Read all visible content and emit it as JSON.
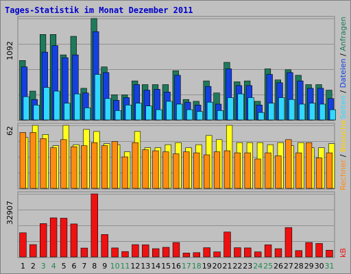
{
  "title": "Tages-Statistik im Monat Dezember 2011",
  "colors": {
    "anfragen": "#1f7a5c",
    "dateien": "#1540e0",
    "seiten": "#30d8ff",
    "besuche": "#ffff1a",
    "rechner": "#ff8c10",
    "kb": "#ee1111",
    "weekend": "#1f8a50",
    "grid": "#909090",
    "panel_bg": "#c0c0c0"
  },
  "right_axis_labels": [
    {
      "text": "Anfragen",
      "color": "#1f7a5c"
    },
    {
      "text": "Dateien",
      "color": "#1540e0"
    },
    {
      "text": "Seiten",
      "color": "#30d8ff"
    },
    {
      "text": "Besuche",
      "color": "#ffd000"
    },
    {
      "text": "Rechner",
      "color": "#ff8c10"
    },
    {
      "text": "kB",
      "color": "#ee1111"
    }
  ],
  "separator": " / ",
  "chart_data": [
    {
      "type": "bar",
      "name": "hits",
      "ymax_label": "1092",
      "ylim": [
        0,
        1092
      ],
      "categories": [
        "1",
        "2",
        "3",
        "4",
        "5",
        "6",
        "7",
        "8",
        "9",
        "10",
        "11",
        "12",
        "13",
        "14",
        "15",
        "16",
        "17",
        "18",
        "19",
        "20",
        "21",
        "22",
        "23",
        "24",
        "25",
        "26",
        "27",
        "28",
        "29",
        "30",
        "31"
      ],
      "series": [
        {
          "name": "Anfragen",
          "values": [
            640,
            310,
            920,
            920,
            700,
            900,
            340,
            1092,
            570,
            270,
            270,
            420,
            380,
            380,
            380,
            530,
            220,
            200,
            420,
            290,
            620,
            410,
            420,
            200,
            550,
            430,
            540,
            480,
            380,
            380,
            320
          ]
        },
        {
          "name": "Dateien",
          "values": [
            570,
            220,
            730,
            800,
            670,
            700,
            290,
            950,
            510,
            210,
            240,
            380,
            320,
            330,
            300,
            480,
            190,
            160,
            360,
            170,
            550,
            370,
            370,
            160,
            490,
            400,
            510,
            420,
            340,
            340,
            230
          ]
        },
        {
          "name": "Seiten",
          "values": [
            250,
            160,
            350,
            310,
            180,
            280,
            130,
            490,
            230,
            100,
            160,
            180,
            150,
            110,
            200,
            170,
            110,
            90,
            190,
            100,
            240,
            280,
            240,
            80,
            180,
            240,
            220,
            170,
            180,
            170,
            110
          ]
        }
      ]
    },
    {
      "type": "bar",
      "name": "visits",
      "ymax_label": "62",
      "ylim": [
        0,
        62
      ],
      "categories": [
        "1",
        "2",
        "3",
        "4",
        "5",
        "6",
        "7",
        "8",
        "9",
        "10",
        "11",
        "12",
        "13",
        "14",
        "15",
        "16",
        "17",
        "18",
        "19",
        "20",
        "21",
        "22",
        "23",
        "24",
        "25",
        "26",
        "27",
        "28",
        "29",
        "30",
        "31"
      ],
      "series": [
        {
          "name": "Besuche",
          "values": [
            50,
            62,
            53,
            42,
            62,
            43,
            58,
            56,
            44,
            43,
            36,
            56,
            40,
            40,
            43,
            45,
            40,
            43,
            52,
            48,
            62,
            45,
            45,
            45,
            43,
            45,
            42,
            45,
            40,
            40,
            44
          ]
        },
        {
          "name": "Rechner",
          "values": [
            55,
            55,
            49,
            40,
            48,
            41,
            42,
            45,
            42,
            46,
            31,
            45,
            38,
            37,
            36,
            34,
            36,
            35,
            33,
            36,
            37,
            35,
            35,
            29,
            35,
            32,
            48,
            35,
            45,
            30,
            35
          ]
        }
      ]
    },
    {
      "type": "bar",
      "name": "traffic",
      "ymax_label": "32907",
      "ylim": [
        0,
        32907
      ],
      "categories": [
        "1",
        "2",
        "3",
        "4",
        "5",
        "6",
        "7",
        "8",
        "9",
        "10",
        "11",
        "12",
        "13",
        "14",
        "15",
        "16",
        "17",
        "18",
        "19",
        "20",
        "21",
        "22",
        "23",
        "24",
        "25",
        "26",
        "27",
        "28",
        "29",
        "30",
        "31"
      ],
      "series": [
        {
          "name": "kB",
          "values": [
            12600,
            6400,
            17400,
            20400,
            20200,
            17200,
            4600,
            32907,
            11700,
            4700,
            2800,
            6400,
            6300,
            4300,
            5000,
            7500,
            2000,
            2200,
            4800,
            2600,
            13000,
            4800,
            4700,
            2600,
            6300,
            4300,
            15300,
            3300,
            7500,
            7000,
            3500
          ]
        }
      ]
    }
  ],
  "weekend_days": [
    "3",
    "4",
    "10",
    "11",
    "17",
    "18",
    "24",
    "25",
    "31"
  ]
}
